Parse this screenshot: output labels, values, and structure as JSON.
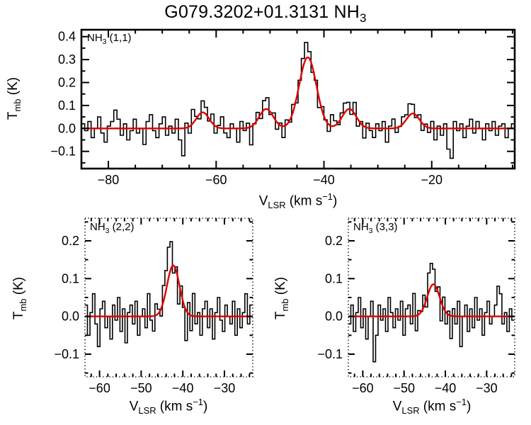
{
  "title": {
    "main": "G079.3202+01.3131 NH",
    "sub": "3",
    "full_text": "G079.3202+01.3131 NH3"
  },
  "axis_titles": {
    "x": {
      "v": "V",
      "sub": "LSR",
      "mid": " (km s",
      "sup": "−1",
      "end": ")",
      "full_text": "VLSR (km s-1)"
    },
    "y": {
      "t": "T",
      "sub": "mb",
      "end": " (K)",
      "full_text": "Tmb (K)"
    }
  },
  "colors": {
    "spectrum": "#000000",
    "fit": "#e00000",
    "frame": "#000000",
    "background": "#ffffff"
  },
  "chart_data": [
    {
      "type": "line",
      "panel_label": {
        "main": "NH",
        "sub": "3",
        "rest": " (1,1)",
        "text": "NH3 (1,1)"
      },
      "xlabel": "VLSR (km s-1)",
      "ylabel": "Tmb (K)",
      "xlim": [
        -85,
        -4.6
      ],
      "ylim": [
        -0.175,
        0.43
      ],
      "xticks": {
        "values": [
          -80,
          -60,
          -40,
          -20
        ],
        "labels": [
          "−80",
          "−60",
          "−40",
          "−20"
        ],
        "minor_step": 5
      },
      "yticks": {
        "values": [
          -0.1,
          0,
          0.1,
          0.2,
          0.3,
          0.4
        ],
        "labels": [
          "−0.1",
          "0.0",
          "0.1",
          "0.2",
          "0.3",
          "0.4"
        ],
        "minor_step": 0.05
      },
      "frame": "solid",
      "series": [
        {
          "name": "observed-spectrum",
          "style": "histogram",
          "color": "#000000",
          "x0": -84.7,
          "dx": 0.6,
          "compose": "fit+noise",
          "noise": [
            0.02,
            -0.01,
            0.03,
            -0.04,
            0.0,
            0.05,
            -0.02,
            -0.06,
            0.01,
            0.03,
            0.08,
            0.04,
            -0.03,
            0.02,
            -0.05,
            -0.01,
            0.04,
            -0.02,
            0.0,
            -0.07,
            0.03,
            0.06,
            -0.01,
            -0.04,
            0.02,
            0.05,
            -0.03,
            0.01,
            -0.02,
            0.04,
            -0.05,
            -0.12,
            0.02,
            -0.03,
            0.06,
            0.01,
            -0.02,
            0.05,
            0.03,
            -0.01,
            0.04,
            -0.03,
            0.01,
            0.05,
            -0.02,
            -0.04,
            0.02,
            0.0,
            -0.06,
            0.03,
            -0.01,
            0.02,
            -0.08,
            0.0,
            0.03,
            -0.02,
            0.04,
            0.05,
            -0.01,
            0.02,
            -0.03,
            0.01,
            -0.05,
            0.02,
            -0.01,
            0.03,
            -0.02,
            0.01,
            0.04,
            0.07,
            0.03,
            -0.02,
            0.01,
            -0.04,
            0.02,
            0.0,
            -0.03,
            0.05,
            0.02,
            -0.01,
            0.02,
            0.04,
            0.03,
            -0.02,
            0.05,
            -0.03,
            0.01,
            -0.05,
            0.02,
            -0.01,
            -0.04,
            0.02,
            -0.01,
            0.03,
            -0.06,
            0.01,
            0.04,
            -0.02,
            0.0,
            0.03,
            0.02,
            0.05,
            0.04,
            -0.01,
            0.02,
            -0.03,
            0.01,
            -0.02,
            0.03,
            -0.05,
            0.01,
            -0.03,
            0.02,
            -0.09,
            -0.13,
            0.03,
            -0.01,
            0.02,
            -0.04,
            0.01,
            0.04,
            -0.02,
            0.03,
            0.0,
            -0.05,
            0.02,
            -0.01,
            0.03,
            -0.03,
            0.01,
            0.02,
            -0.04,
            0.0,
            0.02
          ]
        },
        {
          "name": "gaussian-fit",
          "style": "smooth",
          "color": "#e00000",
          "components": [
            {
              "center": -62.5,
              "amp": 0.07,
              "sigma": 1.2
            },
            {
              "center": -50.7,
              "amp": 0.085,
              "sigma": 1.3
            },
            {
              "center": -43.0,
              "amp": 0.31,
              "sigma": 1.6
            },
            {
              "center": -35.3,
              "amp": 0.085,
              "sigma": 1.3
            },
            {
              "center": -23.5,
              "amp": 0.065,
              "sigma": 1.2
            }
          ]
        }
      ]
    },
    {
      "type": "line",
      "panel_label": {
        "main": "NH",
        "sub": "3",
        "rest": " (2,2)",
        "text": "NH3 (2,2)"
      },
      "xlabel": "VLSR (km s-1)",
      "ylabel": "Tmb (K)",
      "xlim": [
        -63.5,
        -23.2
      ],
      "ylim": [
        -0.16,
        0.26
      ],
      "xticks": {
        "values": [
          -60,
          -50,
          -40,
          -30
        ],
        "labels": [
          "−60",
          "−50",
          "−40",
          "−30"
        ],
        "minor_step": 2
      },
      "yticks": {
        "values": [
          -0.1,
          0,
          0.1,
          0.2
        ],
        "labels": [
          "−0.1",
          "0.0",
          "0.1",
          "0.2"
        ],
        "minor_step": 0.05
      },
      "frame": "dotted",
      "series": [
        {
          "name": "observed-spectrum",
          "style": "histogram",
          "color": "#000000",
          "x0": -63.2,
          "dx": 0.6,
          "compose": "fit+noise",
          "noise": [
            0.03,
            -0.05,
            0.01,
            0.06,
            -0.02,
            -0.08,
            0.02,
            0.04,
            -0.03,
            0.0,
            -0.06,
            0.03,
            -0.01,
            0.05,
            -0.04,
            0.02,
            -0.07,
            0.01,
            0.03,
            -0.02,
            0.04,
            -0.05,
            0.0,
            0.02,
            -0.03,
            0.06,
            -0.01,
            -0.04,
            0.03,
            0.01,
            -0.02,
            0.04,
            0.05,
            0.08,
            0.07,
            -0.02,
            0.01,
            -0.06,
            0.02,
            -0.01,
            -0.08,
            0.03,
            -0.04,
            0.06,
            -0.02,
            0.01,
            -0.05,
            0.02,
            0.04,
            -0.03,
            0.02,
            -0.06,
            0.01,
            0.05,
            -0.01,
            -0.04,
            0.03,
            0.0,
            -0.02,
            0.04,
            -0.05,
            0.02,
            -0.03,
            0.01,
            0.06,
            -0.02,
            0.03
          ]
        },
        {
          "name": "gaussian-fit",
          "style": "smooth",
          "color": "#e00000",
          "components": [
            {
              "center": -42.3,
              "amp": 0.135,
              "sigma": 1.5
            }
          ]
        }
      ]
    },
    {
      "type": "line",
      "panel_label": {
        "main": "NH",
        "sub": "3",
        "rest": " (3,3)",
        "text": "NH3 (3,3)"
      },
      "xlabel": "VLSR (km s-1)",
      "ylabel": "Tmb (K)",
      "xlim": [
        -63.5,
        -23.2
      ],
      "ylim": [
        -0.16,
        0.26
      ],
      "xticks": {
        "values": [
          -60,
          -50,
          -40,
          -30
        ],
        "labels": [
          "−60",
          "−50",
          "−40",
          "−30"
        ],
        "minor_step": 2
      },
      "yticks": {
        "values": [
          -0.1,
          0,
          0.1,
          0.2
        ],
        "labels": [
          "−0.1",
          "0.0",
          "0.1",
          "0.2"
        ],
        "minor_step": 0.05
      },
      "frame": "dotted",
      "series": [
        {
          "name": "observed-spectrum",
          "style": "histogram",
          "color": "#000000",
          "x0": -63.2,
          "dx": 0.6,
          "compose": "fit+noise",
          "noise": [
            -0.02,
            0.03,
            -0.04,
            0.01,
            0.05,
            -0.03,
            0.02,
            -0.06,
            0.0,
            0.04,
            -0.12,
            -0.05,
            0.03,
            -0.01,
            0.02,
            -0.04,
            0.05,
            0.01,
            -0.03,
            0.02,
            -0.01,
            0.04,
            -0.05,
            0.02,
            0.03,
            -0.02,
            0.06,
            -0.04,
            0.01,
            0.0,
            0.03,
            -0.02,
            0.05,
            0.06,
            0.04,
            -0.01,
            0.02,
            -0.05,
            0.03,
            -0.03,
            0.01,
            -0.06,
            0.02,
            -0.02,
            0.04,
            -0.08,
            0.0,
            0.03,
            -0.04,
            0.02,
            -0.03,
            0.05,
            -0.01,
            0.02,
            -0.05,
            0.01,
            0.04,
            -0.02,
            0.0,
            0.03,
            0.08,
            0.06,
            -0.02,
            0.01,
            -0.04,
            0.02,
            -0.01
          ]
        },
        {
          "name": "gaussian-fit",
          "style": "smooth",
          "color": "#e00000",
          "components": [
            {
              "center": -42.9,
              "amp": 0.085,
              "sigma": 1.5
            }
          ]
        }
      ]
    }
  ]
}
